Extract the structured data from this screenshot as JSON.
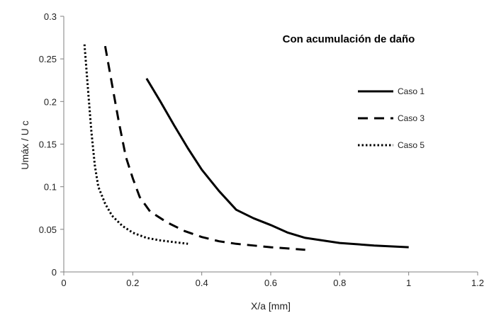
{
  "chart_data": {
    "type": "line",
    "title": "Con acumulación de daño",
    "xlabel": "X/a [mm]",
    "ylabel": "Umáx / U c",
    "xlim": [
      0,
      1.2
    ],
    "ylim": [
      0,
      0.3
    ],
    "xticks": [
      "0",
      "0.2",
      "0.4",
      "0.6",
      "0.8",
      "1",
      "1.2"
    ],
    "yticks": [
      "0",
      "0.05",
      "0.1",
      "0.15",
      "0.2",
      "0.25",
      "0.3"
    ],
    "grid": false,
    "legend_position": "right",
    "series": [
      {
        "name": "Caso 1",
        "style": "solid",
        "color": "#000000",
        "x": [
          0.24,
          0.28,
          0.32,
          0.36,
          0.4,
          0.45,
          0.5,
          0.55,
          0.6,
          0.65,
          0.7,
          0.8,
          0.9,
          1.0
        ],
        "y": [
          0.227,
          0.2,
          0.172,
          0.145,
          0.12,
          0.095,
          0.073,
          0.063,
          0.055,
          0.046,
          0.04,
          0.034,
          0.031,
          0.029
        ]
      },
      {
        "name": "Caso 3",
        "style": "dashed",
        "color": "#000000",
        "x": [
          0.12,
          0.14,
          0.16,
          0.18,
          0.2,
          0.22,
          0.25,
          0.3,
          0.35,
          0.4,
          0.45,
          0.5,
          0.6,
          0.7
        ],
        "y": [
          0.265,
          0.22,
          0.175,
          0.135,
          0.11,
          0.088,
          0.071,
          0.058,
          0.048,
          0.041,
          0.036,
          0.033,
          0.029,
          0.026
        ]
      },
      {
        "name": "Caso 5",
        "style": "dotted",
        "color": "#000000",
        "x": [
          0.06,
          0.07,
          0.08,
          0.09,
          0.1,
          0.12,
          0.14,
          0.17,
          0.2,
          0.24,
          0.28,
          0.32,
          0.36
        ],
        "y": [
          0.267,
          0.215,
          0.165,
          0.125,
          0.1,
          0.08,
          0.066,
          0.054,
          0.046,
          0.04,
          0.037,
          0.035,
          0.033
        ]
      }
    ]
  }
}
